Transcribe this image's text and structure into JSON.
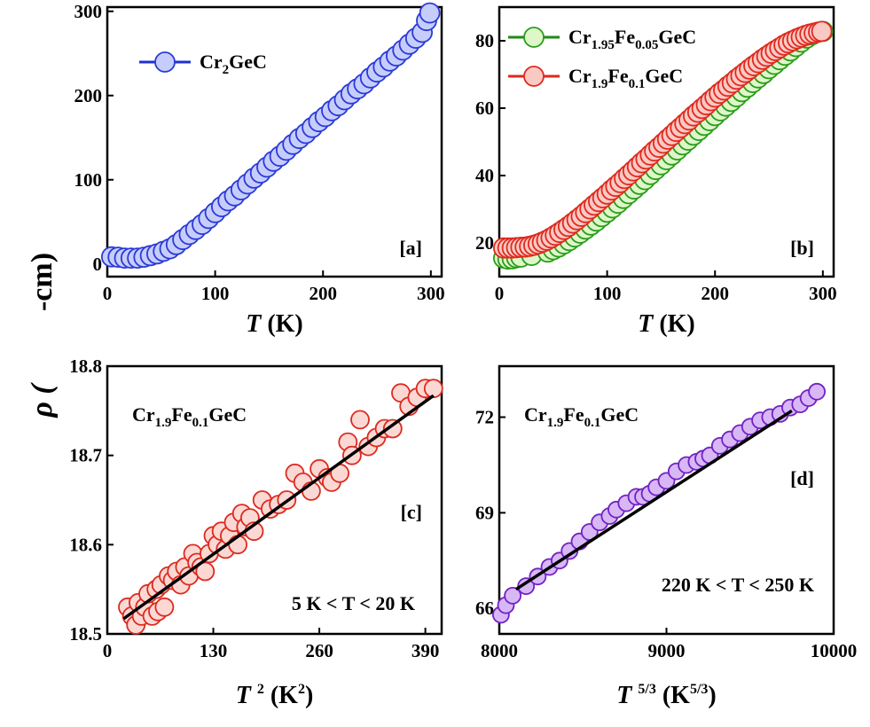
{
  "figure": {
    "y_label_symbol": "ρ (",
    "y_label_unit": "-cm)"
  },
  "chart_data": [
    {
      "panel": "[a]",
      "type": "scatter",
      "xlabel_italic": "T",
      "xlabel_rest": " (K)",
      "xlim": [
        0,
        310
      ],
      "ylim": [
        -15,
        305
      ],
      "xticks": [
        0,
        100,
        200,
        300
      ],
      "yticks": [
        0,
        100,
        200,
        300
      ],
      "legend_position": "top-left",
      "series": [
        {
          "name": "Cr2GeC",
          "name_parts": [
            [
              "Cr",
              ""
            ],
            [
              "2",
              "sub"
            ],
            [
              "GeC",
              ""
            ]
          ],
          "face": "#c7cdfb",
          "edge": "#2a3ad8",
          "line": "#1f2fd0",
          "x": [
            4,
            10,
            16,
            22,
            28,
            34,
            40,
            46,
            52,
            58,
            64,
            70,
            76,
            82,
            88,
            94,
            100,
            106,
            112,
            118,
            124,
            130,
            136,
            142,
            148,
            154,
            160,
            166,
            172,
            178,
            184,
            190,
            196,
            202,
            208,
            214,
            220,
            226,
            232,
            238,
            244,
            250,
            256,
            262,
            268,
            274,
            280,
            286,
            292,
            296,
            299
          ],
          "y": [
            8.5,
            8,
            7,
            7,
            7,
            8,
            10,
            12,
            15,
            18,
            23,
            29,
            35,
            41,
            47,
            54,
            61,
            68,
            75,
            81,
            88,
            95,
            102,
            108,
            115,
            122,
            128,
            135,
            142,
            149,
            155,
            162,
            169,
            175,
            182,
            188,
            195,
            202,
            208,
            214,
            221,
            228,
            234,
            241,
            247,
            254,
            261,
            268,
            275,
            289,
            298
          ]
        }
      ]
    },
    {
      "panel": "[b]",
      "type": "scatter",
      "xlabel_italic": "T",
      "xlabel_rest": " (K)",
      "xlim": [
        0,
        310
      ],
      "ylim": [
        10,
        90
      ],
      "xticks": [
        0,
        100,
        200,
        300
      ],
      "yticks": [
        20,
        40,
        60,
        80
      ],
      "legend_position": "top-left",
      "series": [
        {
          "name": "Cr1.95Fe0.05GeC",
          "name_parts": [
            [
              "Cr",
              ""
            ],
            [
              "1.95",
              "sub"
            ],
            [
              "Fe",
              ""
            ],
            [
              "0.05",
              "sub"
            ],
            [
              "GeC",
              ""
            ]
          ],
          "face": "#ddf7c9",
          "edge": "#2a9c1a",
          "line": "#1f8a14",
          "x": [
            4,
            8,
            12,
            16,
            20,
            30,
            45,
            50,
            55,
            60,
            65,
            70,
            75,
            80,
            85,
            90,
            95,
            100,
            105,
            110,
            115,
            120,
            125,
            130,
            135,
            140,
            145,
            150,
            155,
            160,
            165,
            170,
            175,
            180,
            185,
            190,
            195,
            200,
            205,
            210,
            215,
            220,
            225,
            230,
            235,
            240,
            245,
            250,
            255,
            260,
            265,
            270,
            275,
            280,
            285,
            290,
            295,
            300
          ],
          "y": [
            15.5,
            15.2,
            15.3,
            15.6,
            15.8,
            16.3,
            17.3,
            18,
            18.8,
            19.7,
            20.7,
            21.8,
            22.9,
            24.1,
            25.3,
            26.5,
            27.8,
            29.1,
            30.4,
            31.8,
            33.2,
            34.6,
            36,
            37.4,
            38.8,
            40.3,
            41.8,
            43.2,
            44.7,
            46.1,
            47.6,
            49.1,
            50.5,
            52,
            53.4,
            54.9,
            56.3,
            57.8,
            59.2,
            60.6,
            62,
            63.4,
            64.9,
            66.2,
            67.6,
            69,
            70.3,
            71.7,
            73,
            74.4,
            75.7,
            77,
            78.3,
            79.6,
            80.8,
            81.8,
            82.5,
            82.8
          ]
        },
        {
          "name": "Cr1.9Fe0.1GeC",
          "name_parts": [
            [
              "Cr",
              ""
            ],
            [
              "1.9",
              "sub"
            ],
            [
              "Fe",
              ""
            ],
            [
              "0.1",
              "sub"
            ],
            [
              "GeC",
              ""
            ]
          ],
          "face": "#fbc9c4",
          "edge": "#de2a1e",
          "line": "#e0281d",
          "x": [
            4,
            8,
            12,
            16,
            20,
            24,
            28,
            32,
            36,
            40,
            44,
            48,
            52,
            56,
            60,
            64,
            68,
            72,
            76,
            80,
            84,
            88,
            92,
            96,
            100,
            104,
            108,
            112,
            116,
            120,
            124,
            128,
            132,
            136,
            140,
            144,
            148,
            152,
            156,
            160,
            164,
            168,
            172,
            176,
            180,
            184,
            188,
            192,
            196,
            200,
            204,
            208,
            212,
            216,
            220,
            224,
            228,
            232,
            236,
            240,
            244,
            248,
            252,
            256,
            260,
            264,
            268,
            272,
            276,
            280,
            284,
            288,
            292,
            296,
            299
          ],
          "y": [
            18.5,
            18.5,
            18.5,
            18.6,
            18.7,
            18.8,
            19,
            19.3,
            19.7,
            20.2,
            20.8,
            21.5,
            22.3,
            23.1,
            24,
            24.9,
            25.9,
            26.9,
            27.9,
            29,
            30.1,
            31.2,
            32.3,
            33.4,
            34.5,
            35.7,
            36.8,
            37.9,
            39.1,
            40.2,
            41.4,
            42.6,
            43.8,
            44.9,
            46.1,
            47.3,
            48.4,
            49.6,
            50.8,
            51.9,
            53.1,
            54.2,
            55.4,
            56.5,
            57.7,
            58.8,
            59.9,
            61,
            62.2,
            63.3,
            64.4,
            65.4,
            66.5,
            67.5,
            68.6,
            69.6,
            70.6,
            71.6,
            72.6,
            73.5,
            74.5,
            75.4,
            76.3,
            77.1,
            77.9,
            78.7,
            79.4,
            80,
            80.6,
            81.1,
            81.6,
            82,
            82.3,
            82.6,
            82.8
          ]
        }
      ]
    },
    {
      "panel": "[c]",
      "type": "scatter",
      "inset_label_parts": [
        [
          "Cr",
          ""
        ],
        [
          "1.9",
          "sub"
        ],
        [
          "Fe",
          ""
        ],
        [
          "0.1",
          "sub"
        ],
        [
          "GeC",
          ""
        ]
      ],
      "range_note": "5 K < T < 20 K",
      "xlabel_parts": [
        [
          "T",
          "it"
        ],
        [
          " ",
          ""
        ],
        [
          "2",
          "sup"
        ],
        [
          " (K",
          ""
        ],
        [
          "2",
          "sup"
        ],
        [
          ")",
          ""
        ]
      ],
      "xlim": [
        0,
        410
      ],
      "ylim": [
        18.5,
        18.8
      ],
      "xticks": [
        0,
        130,
        260,
        390
      ],
      "yticks": [
        18.5,
        18.6,
        18.7,
        18.8
      ],
      "ytick_decimals": 1,
      "series": [
        {
          "name": "",
          "face": "#fcd8d4",
          "edge": "#dc2b1f",
          "x": [
            25,
            30,
            35,
            38,
            42,
            46,
            50,
            55,
            60,
            62,
            66,
            70,
            75,
            80,
            85,
            90,
            95,
            100,
            105,
            110,
            115,
            120,
            125,
            130,
            135,
            140,
            145,
            150,
            155,
            160,
            165,
            170,
            175,
            180,
            190,
            200,
            210,
            220,
            230,
            240,
            250,
            260,
            270,
            275,
            285,
            295,
            300,
            310,
            320,
            330,
            340,
            350,
            360,
            370,
            380,
            390,
            400
          ],
          "y": [
            18.53,
            18.52,
            18.51,
            18.535,
            18.52,
            18.53,
            18.545,
            18.52,
            18.55,
            18.525,
            18.555,
            18.53,
            18.565,
            18.56,
            18.57,
            18.555,
            18.575,
            18.565,
            18.59,
            18.58,
            18.575,
            18.57,
            18.59,
            18.61,
            18.6,
            18.615,
            18.595,
            18.61,
            18.625,
            18.6,
            18.635,
            18.62,
            18.63,
            18.615,
            18.65,
            18.64,
            18.645,
            18.65,
            18.68,
            18.67,
            18.66,
            18.685,
            18.675,
            18.67,
            18.68,
            18.715,
            18.7,
            18.74,
            18.71,
            18.72,
            18.73,
            18.73,
            18.77,
            18.755,
            18.765,
            18.775,
            18.775
          ]
        }
      ],
      "fit_line": {
        "x": [
          20,
          400
        ],
        "y": [
          18.517,
          18.767
        ]
      }
    },
    {
      "panel": "[d]",
      "type": "scatter",
      "inset_label_parts": [
        [
          "Cr",
          ""
        ],
        [
          "1.9",
          "sub"
        ],
        [
          "Fe",
          ""
        ],
        [
          "0.1",
          "sub"
        ],
        [
          "GeC",
          ""
        ]
      ],
      "range_note": "220 K < T < 250 K",
      "xlabel_parts": [
        [
          "T",
          "it"
        ],
        [
          " ",
          ""
        ],
        [
          "5/3",
          "sup"
        ],
        [
          " (K",
          ""
        ],
        [
          "5/3",
          "sup"
        ],
        [
          ")",
          ""
        ]
      ],
      "xlim": [
        8000,
        10000
      ],
      "ylim": [
        65.2,
        73.6
      ],
      "xticks": [
        8000,
        9000,
        10000
      ],
      "yticks": [
        66,
        69,
        72
      ],
      "ytick_decimals": 0,
      "series": [
        {
          "name": "",
          "face": "#d8b7f5",
          "edge": "#7222c4",
          "x": [
            8010,
            8040,
            8080,
            8160,
            8230,
            8300,
            8360,
            8420,
            8480,
            8540,
            8600,
            8660,
            8700,
            8760,
            8820,
            8860,
            8900,
            8940,
            9000,
            9060,
            9120,
            9180,
            9220,
            9260,
            9320,
            9380,
            9440,
            9500,
            9560,
            9620,
            9680,
            9740,
            9800,
            9850,
            9900
          ],
          "y": [
            65.8,
            66.1,
            66.4,
            66.7,
            67,
            67.3,
            67.5,
            67.8,
            68.1,
            68.4,
            68.7,
            68.9,
            69.1,
            69.3,
            69.5,
            69.5,
            69.6,
            69.8,
            70,
            70.3,
            70.5,
            70.6,
            70.7,
            70.8,
            71.1,
            71.3,
            71.5,
            71.7,
            71.9,
            72.0,
            72.1,
            72.3,
            72.4,
            72.6,
            72.8
          ]
        }
      ],
      "fit_line": {
        "x": [
          8100,
          9750
        ],
        "y": [
          66.6,
          72.2
        ]
      }
    }
  ]
}
